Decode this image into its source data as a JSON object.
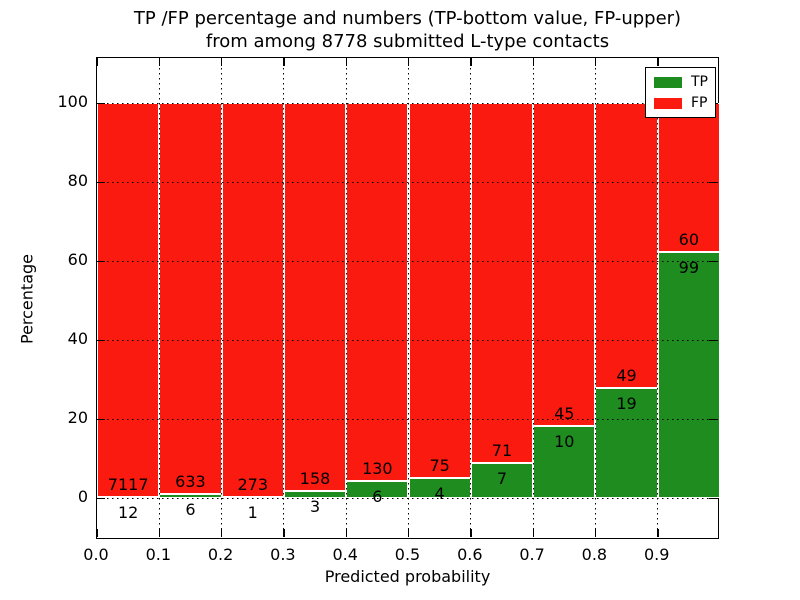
{
  "figure": {
    "title_line1": "TP /FP percentage and numbers (TP-bottom value, FP-upper)",
    "title_line2": "from among 8778 submitted L-type contacts",
    "background_color": "#ffffff",
    "frame_color": "#000000",
    "grid_color": "#000000"
  },
  "chart_data": {
    "type": "bar",
    "variant": "stacked-percentage",
    "title": "TP /FP percentage and numbers (TP-bottom value, FP-upper)\nfrom among 8778 submitted L-type contacts",
    "xlabel": "Predicted probability",
    "ylabel": "Percentage",
    "total_submitted": 8778,
    "categories": [
      "0.0-0.1",
      "0.1-0.2",
      "0.2-0.3",
      "0.3-0.4",
      "0.4-0.5",
      "0.5-0.6",
      "0.6-0.7",
      "0.7-0.8",
      "0.8-0.9",
      "0.9-1.0"
    ],
    "series": [
      {
        "name": "TP",
        "position": "bottom",
        "color": "#1e8c1e",
        "values": [
          12,
          6,
          1,
          3,
          6,
          4,
          7,
          10,
          19,
          99
        ]
      },
      {
        "name": "FP",
        "position": "top",
        "color": "#fb1a10",
        "values": [
          7117,
          633,
          273,
          158,
          130,
          75,
          71,
          45,
          49,
          60
        ]
      }
    ],
    "bar_edge_color": "#ffffff",
    "x_tick_labels": [
      "0.0",
      "0.1",
      "0.2",
      "0.3",
      "0.4",
      "0.5",
      "0.6",
      "0.7",
      "0.8",
      "0.9"
    ],
    "y_ticks": [
      0,
      20,
      40,
      60,
      80,
      100
    ],
    "ylim": [
      0,
      100
    ],
    "xlim": [
      0.0,
      1.0
    ],
    "grid": "dotted",
    "legend": {
      "position": "upper-right",
      "entries": [
        {
          "label": "TP",
          "color": "#1e8c1e"
        },
        {
          "label": "FP",
          "color": "#fb1a10"
        }
      ]
    }
  }
}
